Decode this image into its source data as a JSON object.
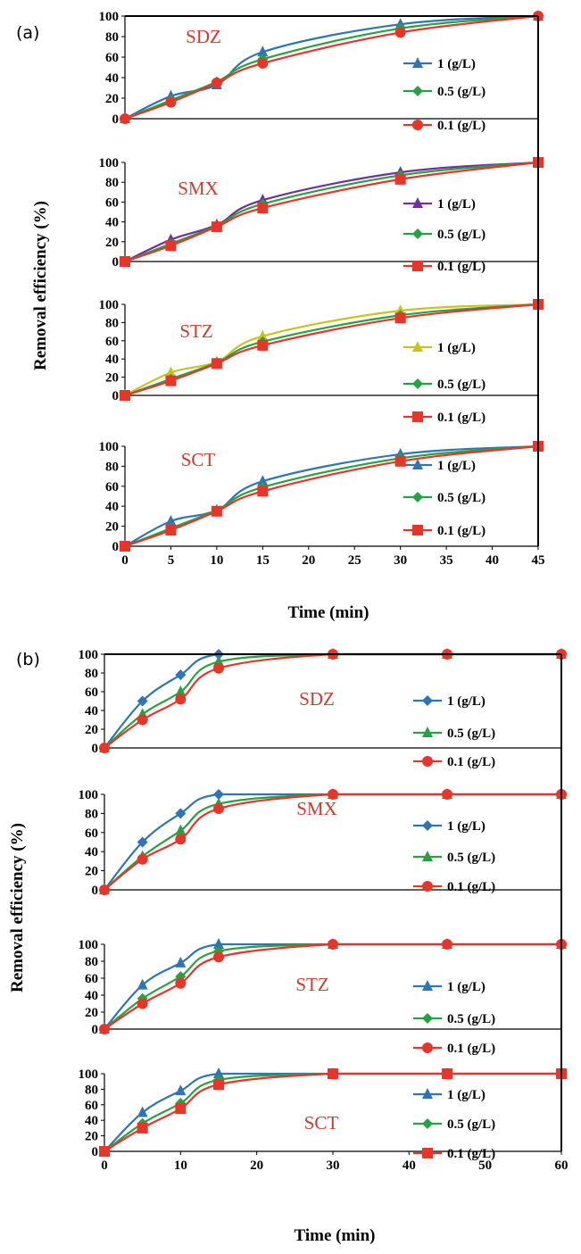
{
  "panel_labels": [
    "(a)",
    "(b)"
  ],
  "chart_data": [
    {
      "type": "line",
      "panel": "(a)",
      "title": "SDZ",
      "xlabel": "Time (min)",
      "ylabel": "Removal efficiency (%)",
      "x": [
        0,
        5,
        10,
        15,
        30,
        45
      ],
      "xlim": [
        0,
        45
      ],
      "ylim": [
        0,
        100
      ],
      "xticks": [
        "0",
        "5",
        "10",
        "15",
        "20",
        "25",
        "30",
        "35",
        "40",
        "45"
      ],
      "yticks": [
        "0",
        "20",
        "40",
        "60",
        "80",
        "100"
      ],
      "legend": "right",
      "series": [
        {
          "name": "1 (g/L)",
          "color": "#2e75b6",
          "marker": "triangle",
          "values": [
            0,
            22,
            33,
            65,
            92,
            100
          ]
        },
        {
          "name": "0.5 (g/L)",
          "color": "#27a243",
          "marker": "diamond",
          "values": [
            0,
            18,
            36,
            58,
            88,
            100
          ]
        },
        {
          "name": "0.1 (g/L)",
          "color": "#e8352a",
          "marker": "circle",
          "values": [
            0,
            16,
            35,
            54,
            84,
            100
          ]
        }
      ]
    },
    {
      "type": "line",
      "panel": "(a)",
      "title": "SMX",
      "xlabel": "Time (min)",
      "ylabel": "Removal efficiency (%)",
      "x": [
        0,
        5,
        10,
        15,
        30,
        45
      ],
      "xlim": [
        0,
        45
      ],
      "ylim": [
        0,
        100
      ],
      "xticks": [
        "0",
        "5",
        "10",
        "15",
        "20",
        "25",
        "30",
        "35",
        "40",
        "45"
      ],
      "yticks": [
        "0",
        "20",
        "40",
        "60",
        "80",
        "100"
      ],
      "legend": "right",
      "series": [
        {
          "name": "1 (g/L)",
          "color": "#7030a0",
          "marker": "triangle",
          "values": [
            0,
            22,
            37,
            62,
            90,
            100
          ]
        },
        {
          "name": "0.5 (g/L)",
          "color": "#27a243",
          "marker": "diamond",
          "values": [
            0,
            18,
            36,
            58,
            87,
            100
          ]
        },
        {
          "name": "0.1 (g/L)",
          "color": "#e8352a",
          "marker": "square",
          "values": [
            0,
            16,
            35,
            54,
            83,
            100
          ]
        }
      ]
    },
    {
      "type": "line",
      "panel": "(a)",
      "title": "STZ",
      "xlabel": "Time (min)",
      "ylabel": "Removal efficiency (%)",
      "x": [
        0,
        5,
        10,
        15,
        30,
        45
      ],
      "xlim": [
        0,
        45
      ],
      "ylim": [
        0,
        100
      ],
      "xticks": [
        "0",
        "5",
        "10",
        "15",
        "20",
        "25",
        "30",
        "35",
        "40",
        "45"
      ],
      "yticks": [
        "0",
        "20",
        "40",
        "60",
        "80",
        "100"
      ],
      "legend": "right",
      "series": [
        {
          "name": "1 (g/L)",
          "color": "#c8c41e",
          "marker": "triangle",
          "values": [
            0,
            25,
            37,
            65,
            93,
            100
          ]
        },
        {
          "name": "0.5 (g/L)",
          "color": "#27a243",
          "marker": "diamond",
          "values": [
            0,
            18,
            36,
            59,
            88,
            100
          ]
        },
        {
          "name": "0.1 (g/L)",
          "color": "#e8352a",
          "marker": "square",
          "values": [
            0,
            16,
            35,
            55,
            85,
            100
          ]
        }
      ]
    },
    {
      "type": "line",
      "panel": "(a)",
      "title": "SCT",
      "xlabel": "Time (min)",
      "ylabel": "Removal efficiency (%)",
      "x": [
        0,
        5,
        10,
        15,
        30,
        45
      ],
      "xlim": [
        0,
        45
      ],
      "ylim": [
        0,
        100
      ],
      "xticks": [
        "0",
        "5",
        "10",
        "15",
        "20",
        "25",
        "30",
        "35",
        "40",
        "45"
      ],
      "yticks": [
        "0",
        "20",
        "40",
        "60",
        "80",
        "100"
      ],
      "legend": "right",
      "series": [
        {
          "name": "1 (g/L)",
          "color": "#2e75b6",
          "marker": "triangle",
          "values": [
            0,
            25,
            36,
            65,
            92,
            100
          ]
        },
        {
          "name": "0.5 (g/L)",
          "color": "#27a243",
          "marker": "diamond",
          "values": [
            0,
            18,
            36,
            59,
            88,
            100
          ]
        },
        {
          "name": "0.1 (g/L)",
          "color": "#e8352a",
          "marker": "square",
          "values": [
            0,
            16,
            35,
            55,
            85,
            100
          ]
        }
      ]
    },
    {
      "type": "line",
      "panel": "(b)",
      "title": "SDZ",
      "xlabel": "Time (min)",
      "ylabel": "Removal efficiency (%)",
      "x": [
        0,
        5,
        10,
        15,
        30,
        45,
        60
      ],
      "xlim": [
        0,
        60
      ],
      "ylim": [
        0,
        100
      ],
      "xticks": [
        "0",
        "10",
        "20",
        "30",
        "40",
        "50",
        "60"
      ],
      "yticks": [
        "0",
        "20",
        "40",
        "60",
        "80",
        "100"
      ],
      "legend": "right",
      "series": [
        {
          "name": "1 (g/L)",
          "color": "#2e75b6",
          "marker": "diamond",
          "values": [
            0,
            50,
            78,
            100,
            100,
            100,
            100
          ]
        },
        {
          "name": "0.5 (g/L)",
          "color": "#27a243",
          "marker": "triangle",
          "values": [
            0,
            36,
            60,
            92,
            100,
            100,
            100
          ]
        },
        {
          "name": "0.1 (g/L)",
          "color": "#e8352a",
          "marker": "circle",
          "values": [
            0,
            30,
            52,
            85,
            100,
            100,
            100
          ]
        }
      ]
    },
    {
      "type": "line",
      "panel": "(b)",
      "title": "SMX",
      "xlabel": "Time (min)",
      "ylabel": "Removal efficiency (%)",
      "x": [
        0,
        5,
        10,
        15,
        30,
        45,
        60
      ],
      "xlim": [
        0,
        60
      ],
      "ylim": [
        0,
        100
      ],
      "xticks": [
        "0",
        "10",
        "20",
        "30",
        "40",
        "50",
        "60"
      ],
      "yticks": [
        "0",
        "20",
        "40",
        "60",
        "80",
        "100"
      ],
      "legend": "right",
      "series": [
        {
          "name": "1 (g/L)",
          "color": "#2e75b6",
          "marker": "diamond",
          "values": [
            0,
            50,
            80,
            100,
            100,
            100,
            100
          ]
        },
        {
          "name": "0.5 (g/L)",
          "color": "#27a243",
          "marker": "triangle",
          "values": [
            0,
            35,
            62,
            90,
            100,
            100,
            100
          ]
        },
        {
          "name": "0.1 (g/L)",
          "color": "#e8352a",
          "marker": "circle",
          "values": [
            0,
            32,
            53,
            85,
            100,
            100,
            100
          ]
        }
      ]
    },
    {
      "type": "line",
      "panel": "(b)",
      "title": "STZ",
      "xlabel": "Time (min)",
      "ylabel": "Removal efficiency (%)",
      "x": [
        0,
        5,
        10,
        15,
        30,
        45,
        60
      ],
      "xlim": [
        0,
        60
      ],
      "ylim": [
        0,
        100
      ],
      "xticks": [
        "0",
        "10",
        "20",
        "30",
        "40",
        "50",
        "60"
      ],
      "yticks": [
        "0",
        "20",
        "40",
        "60",
        "80",
        "100"
      ],
      "legend": "right",
      "series": [
        {
          "name": "1 (g/L)",
          "color": "#2e75b6",
          "marker": "triangle",
          "values": [
            0,
            52,
            78,
            100,
            100,
            100,
            100
          ]
        },
        {
          "name": "0.5 (g/L)",
          "color": "#27a243",
          "marker": "diamond",
          "values": [
            0,
            36,
            62,
            92,
            100,
            100,
            100
          ]
        },
        {
          "name": "0.1 (g/L)",
          "color": "#e8352a",
          "marker": "circle",
          "values": [
            0,
            30,
            54,
            85,
            100,
            100,
            100
          ]
        }
      ]
    },
    {
      "type": "line",
      "panel": "(b)",
      "title": "SCT",
      "xlabel": "Time (min)",
      "ylabel": "Removal efficiency (%)",
      "x": [
        0,
        5,
        10,
        15,
        30,
        45,
        60
      ],
      "xlim": [
        0,
        60
      ],
      "ylim": [
        0,
        100
      ],
      "xticks": [
        "0",
        "10",
        "20",
        "30",
        "40",
        "50",
        "60"
      ],
      "yticks": [
        "0",
        "20",
        "40",
        "60",
        "80",
        "100"
      ],
      "legend": "right",
      "series": [
        {
          "name": "1 (g/L)",
          "color": "#2e75b6",
          "marker": "triangle",
          "values": [
            0,
            50,
            78,
            100,
            100,
            100,
            100
          ]
        },
        {
          "name": "0.5 (g/L)",
          "color": "#27a243",
          "marker": "diamond",
          "values": [
            0,
            36,
            62,
            92,
            100,
            100,
            100
          ]
        },
        {
          "name": "0.1 (g/L)",
          "color": "#e8352a",
          "marker": "square",
          "values": [
            0,
            30,
            55,
            86,
            100,
            100,
            100
          ]
        }
      ]
    }
  ]
}
